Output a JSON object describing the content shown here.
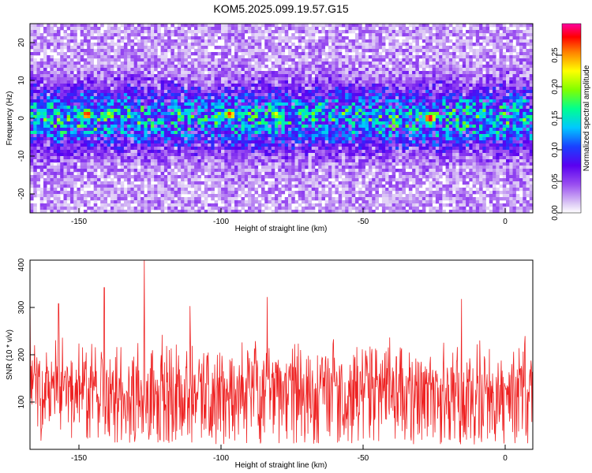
{
  "title": "KOM5.2025.099.19.57.G15",
  "top_chart": {
    "xlabel": "Height of straight line (km)",
    "ylabel": "Frequency (Hz)",
    "xticks": [
      "-150",
      "-100",
      "-50",
      "0"
    ],
    "yticks": [
      "-20",
      "-10",
      "0",
      "10",
      "20"
    ],
    "colorbar_label": "Normalized spectral amplitude",
    "colorbar_ticks": [
      "0.00",
      "0.05",
      "0.10",
      "0.15",
      "0.20",
      "0.25"
    ]
  },
  "bottom_chart": {
    "xlabel": "Height of straight line (km)",
    "ylabel": "SNR (10 * v/v)",
    "xticks": [
      "-150",
      "-100",
      "-50",
      "0"
    ],
    "yticks": [
      "100",
      "200",
      "300",
      "400"
    ]
  },
  "chart_data": [
    {
      "type": "heatmap",
      "title": "KOM5.2025.099.19.57.G15",
      "xlabel": "Height of straight line (km)",
      "ylabel": "Frequency (Hz)",
      "xlim": [
        -168,
        8
      ],
      "ylim": [
        -25,
        25
      ],
      "colorbar": {
        "label": "Normalized spectral amplitude",
        "range": [
          0,
          0.3
        ],
        "colormap": [
          "#ffffff",
          "#dcc8f5",
          "#9a4ef0",
          "#5a00f0",
          "#1a40ff",
          "#00c8ff",
          "#00ff90",
          "#80ff00",
          "#ffff00",
          "#ff8000",
          "#ff0000",
          "#ff00a0"
        ]
      },
      "band": {
        "center_hz": 0,
        "halfwidth_hz": 8
      },
      "hotspots": [
        {
          "x": -148,
          "y": 1,
          "value": 0.28
        },
        {
          "x": -98,
          "y": 1,
          "value": 0.27
        },
        {
          "x": -28,
          "y": 0,
          "value": 0.3
        },
        {
          "x": -82,
          "y": 1,
          "value": 0.22
        },
        {
          "x": -162,
          "y": -2,
          "value": 0.15
        }
      ]
    },
    {
      "type": "line",
      "xlabel": "Height of straight line (km)",
      "ylabel": "SNR (10 * v/v)",
      "xlim": [
        -168,
        8
      ],
      "ylim": [
        0,
        400
      ],
      "series": [
        {
          "color": "#ee2222",
          "mean": 125,
          "noise_range": [
            10,
            250
          ],
          "peaks": [
            {
              "x": -128,
              "y": 400
            },
            {
              "x": -142,
              "y": 342
            },
            {
              "x": -85,
              "y": 322
            },
            {
              "x": -168,
              "y": 322
            },
            {
              "x": -17,
              "y": 318
            },
            {
              "x": -158,
              "y": 308
            },
            {
              "x": -112,
              "y": 303
            }
          ]
        }
      ]
    }
  ]
}
